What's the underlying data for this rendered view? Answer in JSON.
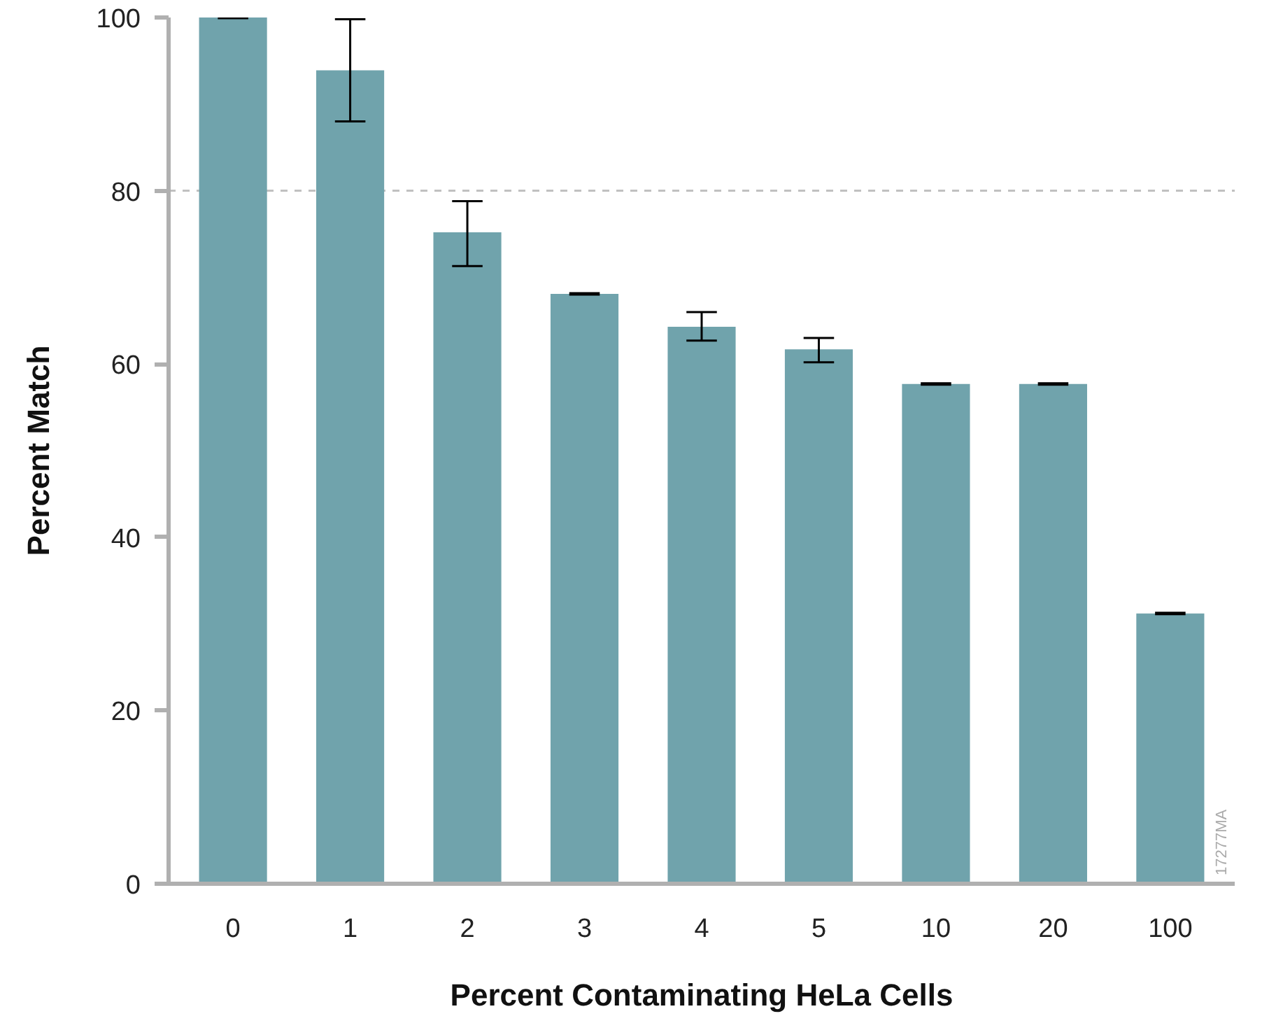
{
  "chart_data": {
    "type": "bar",
    "xlabel": "Percent Contaminating HeLa Cells",
    "ylabel": "Percent Match",
    "categories": [
      "0",
      "1",
      "2",
      "3",
      "4",
      "5",
      "10",
      "20",
      "100"
    ],
    "values": [
      100,
      93.9,
      75.2,
      68.1,
      64.3,
      61.7,
      57.7,
      57.7,
      31.2
    ],
    "errors": [
      0,
      [
        88.0,
        99.8
      ],
      [
        71.3,
        78.8
      ],
      0,
      [
        62.7,
        66.0
      ],
      [
        60.2,
        63.0
      ],
      0,
      0,
      0
    ],
    "color": "#70a3ac",
    "ylim": [
      0,
      100
    ],
    "yticks": [
      0,
      20,
      40,
      60,
      80,
      100
    ],
    "grid": false,
    "ref_lines": [
      {
        "axis": "y",
        "value": 80,
        "color": "#c0c0c0",
        "line_style": "dashed"
      }
    ],
    "annotations": [
      "17277MA"
    ]
  }
}
